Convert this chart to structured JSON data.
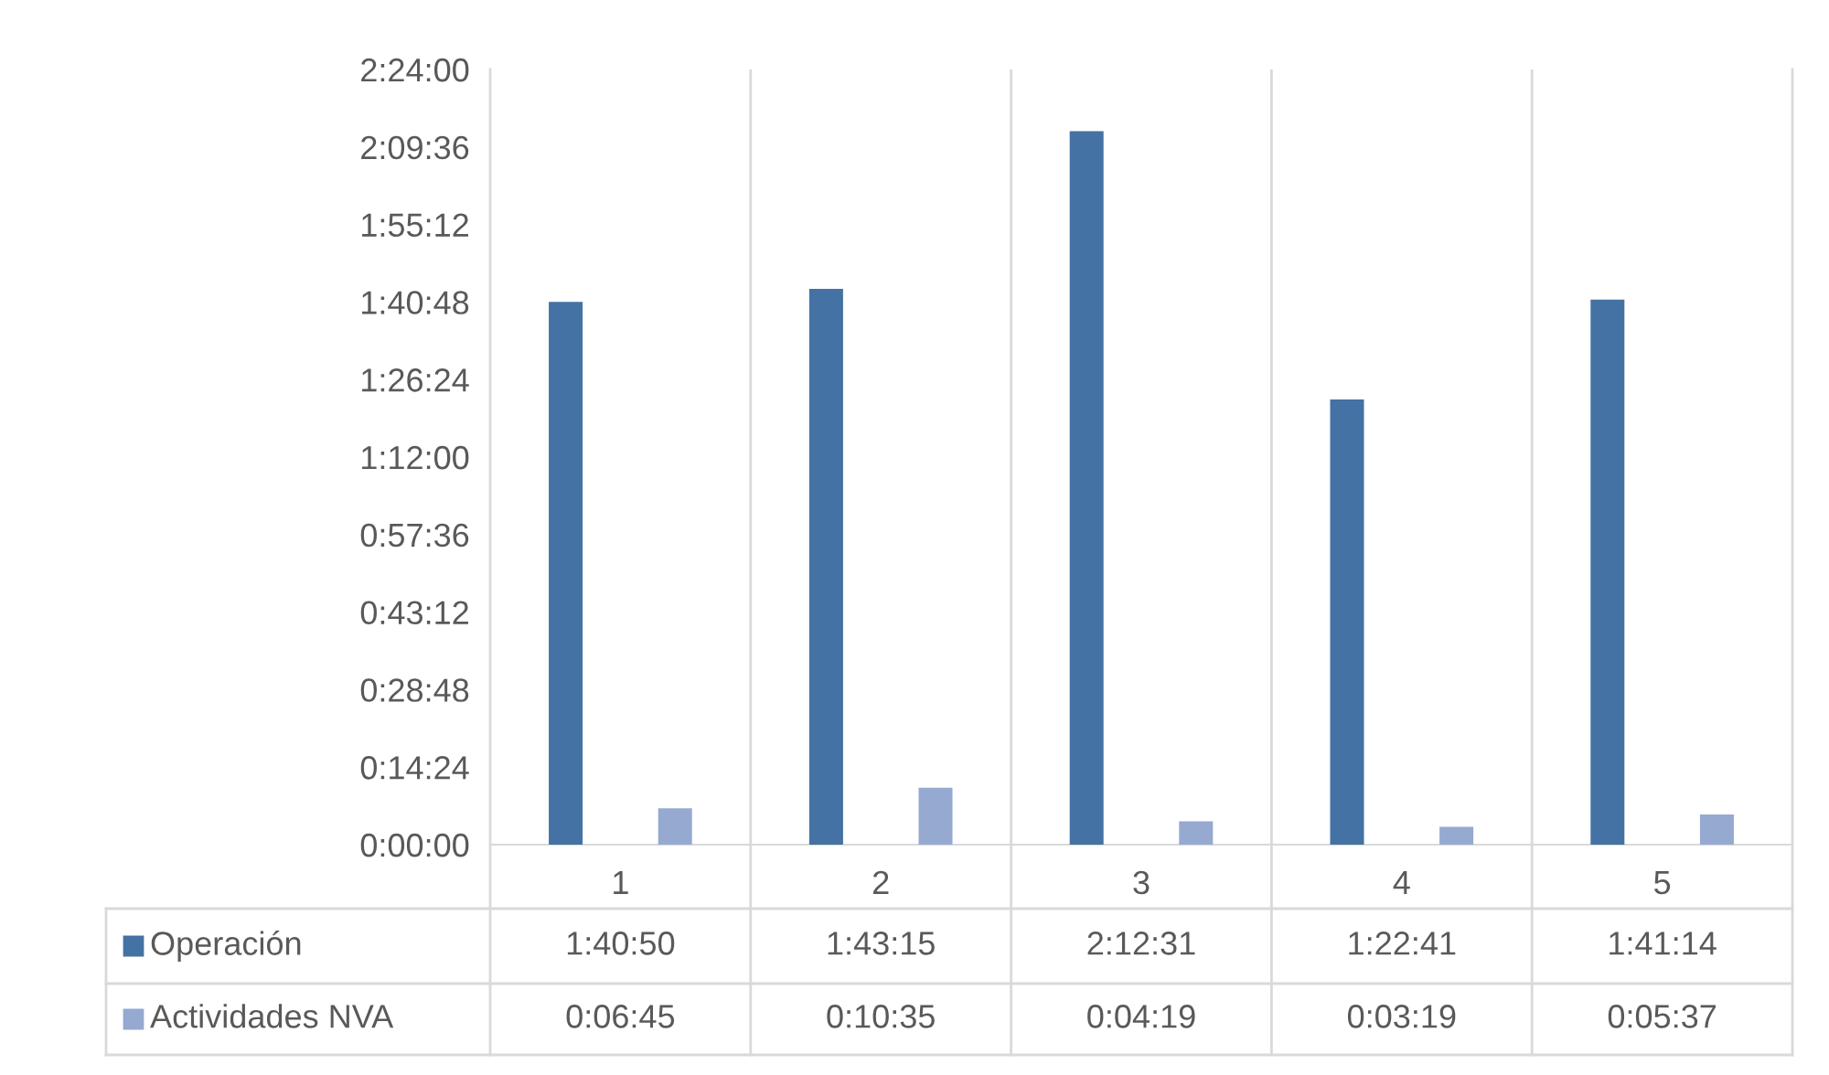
{
  "chart_data": {
    "type": "bar",
    "categories": [
      "1",
      "2",
      "3",
      "4",
      "5"
    ],
    "series": [
      {
        "name": "Operación",
        "color": "#4472a4",
        "values": [
          100.8333,
          103.25,
          132.5167,
          82.6833,
          101.2333
        ],
        "value_labels": [
          "1:40:50",
          "1:43:15",
          "2:12:31",
          "1:22:41",
          "1:41:14"
        ]
      },
      {
        "name": "Actividades NVA",
        "color": "#95a9d1",
        "values": [
          6.75,
          10.5833,
          4.3167,
          3.3167,
          5.6167
        ],
        "value_labels": [
          "0:06:45",
          "0:10:35",
          "0:04:19",
          "0:03:19",
          "0:05:37"
        ]
      }
    ],
    "ylim": [
      0,
      144
    ],
    "yticks": [
      {
        "value": 0,
        "label": "0:00:00"
      },
      {
        "value": 14.4,
        "label": "0:14:24"
      },
      {
        "value": 28.8,
        "label": "0:28:48"
      },
      {
        "value": 43.2,
        "label": "0:43:12"
      },
      {
        "value": 57.6,
        "label": "0:57:36"
      },
      {
        "value": 72,
        "label": "1:12:00"
      },
      {
        "value": 86.4,
        "label": "1:26:24"
      },
      {
        "value": 100.8,
        "label": "1:40:48"
      },
      {
        "value": 115.2,
        "label": "1:55:12"
      },
      {
        "value": 129.6,
        "label": "2:09:36"
      },
      {
        "value": 144,
        "label": "2:24:00"
      }
    ],
    "grid": "x",
    "legend": "bottom left"
  }
}
